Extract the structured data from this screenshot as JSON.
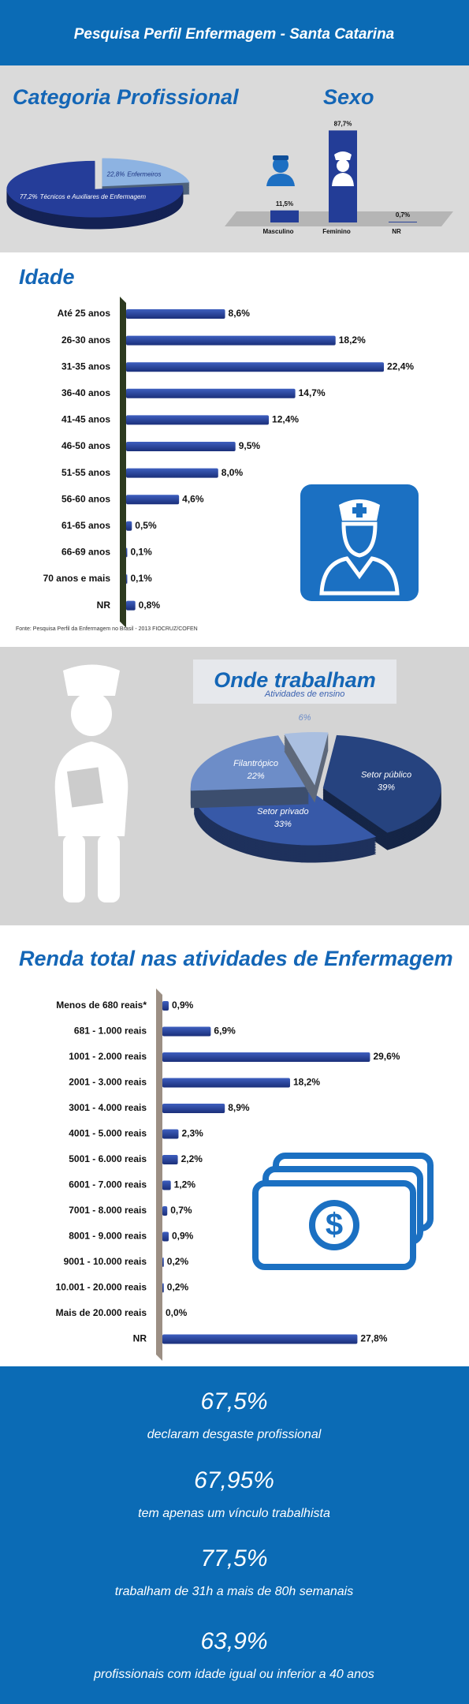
{
  "header": {
    "title": "Pesquisa Perfil Enfermagem  - Santa Catarina"
  },
  "chart_data": [
    {
      "type": "pie",
      "title": "Categoria Profissional",
      "categories": [
        "Enfermeiros",
        "Técnicos e Auxiliares de Enfermagem"
      ],
      "values": [
        22.8,
        77.2
      ],
      "value_labels": [
        "22,8%",
        "77,2%"
      ],
      "colors": [
        "#8db3e2",
        "#253d99"
      ]
    },
    {
      "type": "bar",
      "orientation": "vertical",
      "title": "Sexo",
      "categories": [
        "Masculino",
        "Feminino",
        "NR"
      ],
      "values": [
        11.5,
        87.7,
        0.7
      ],
      "value_labels": [
        "11,5%",
        "87,7%",
        "0,7%"
      ],
      "color": "#233d97"
    },
    {
      "type": "bar",
      "orientation": "horizontal",
      "title": "Idade",
      "categories": [
        "Até 25 anos",
        "26-30 anos",
        "31-35 anos",
        "36-40 anos",
        "41-45 anos",
        "46-50 anos",
        "51-55 anos",
        "56-60 anos",
        "61-65 anos",
        "66-69 anos",
        "70 anos e mais",
        "NR"
      ],
      "values": [
        8.6,
        18.2,
        22.4,
        14.7,
        12.4,
        9.5,
        8.0,
        4.6,
        0.5,
        0.1,
        0.1,
        0.8
      ],
      "value_labels": [
        "8,6%",
        "18,2%",
        "22,4%",
        "14,7%",
        "12,4%",
        "9,5%",
        "8,0%",
        "4,6%",
        "0,5%",
        "0,1%",
        "0,1%",
        "0,8%"
      ],
      "color": "#23409a",
      "source": "Fonte: Pesquisa Perfil da Enfermagem no Brasil - 2013 FIOCRUZ/COFEN"
    },
    {
      "type": "pie",
      "title": "Onde trabalham",
      "categories": [
        "Setor público",
        "Setor privado",
        "Filantrópico",
        "Atividades de ensino"
      ],
      "values": [
        39,
        33,
        22,
        6
      ],
      "value_labels": [
        "39%",
        "33%",
        "22%",
        "6%"
      ],
      "colors": [
        "#26437f",
        "#3759a8",
        "#6d8dc8",
        "#aabfe0"
      ]
    },
    {
      "type": "bar",
      "orientation": "horizontal",
      "title": "Renda total nas atividades de Enfermagem",
      "categories": [
        "Menos de 680 reais*",
        "681  - 1.000 reais",
        "1001 - 2.000 reais",
        "2001 - 3.000 reais",
        "3001 - 4.000 reais",
        "4001 - 5.000 reais",
        "5001 - 6.000 reais",
        "6001 - 7.000 reais",
        "7001 - 8.000 reais",
        "8001 - 9.000 reais",
        "9001 - 10.000 reais",
        "10.001 - 20.000 reais",
        "Mais de 20.000 reais",
        "NR"
      ],
      "values": [
        0.9,
        6.9,
        29.6,
        18.2,
        8.9,
        2.3,
        2.2,
        1.2,
        0.7,
        0.9,
        0.2,
        0.2,
        0.0,
        27.8
      ],
      "value_labels": [
        "0,9%",
        "6,9%",
        "29,6%",
        "18,2%",
        "8,9%",
        "2,3%",
        "2,2%",
        "1,2%",
        "0,7%",
        "0,9%",
        "0,2%",
        "0,2%",
        "0,0%",
        "27,8%"
      ],
      "color": "#23409a"
    }
  ],
  "highlights": [
    {
      "value": "67,5%",
      "text": "declaram desgaste profissional"
    },
    {
      "value": "67,95%",
      "text": "tem apenas um vínculo trabalhista"
    },
    {
      "value": "77,5%",
      "text": "trabalham de 31h a mais de 80h semanais"
    },
    {
      "value": "63,9%",
      "text": "profissionais com idade igual ou inferior a 40 anos"
    }
  ]
}
